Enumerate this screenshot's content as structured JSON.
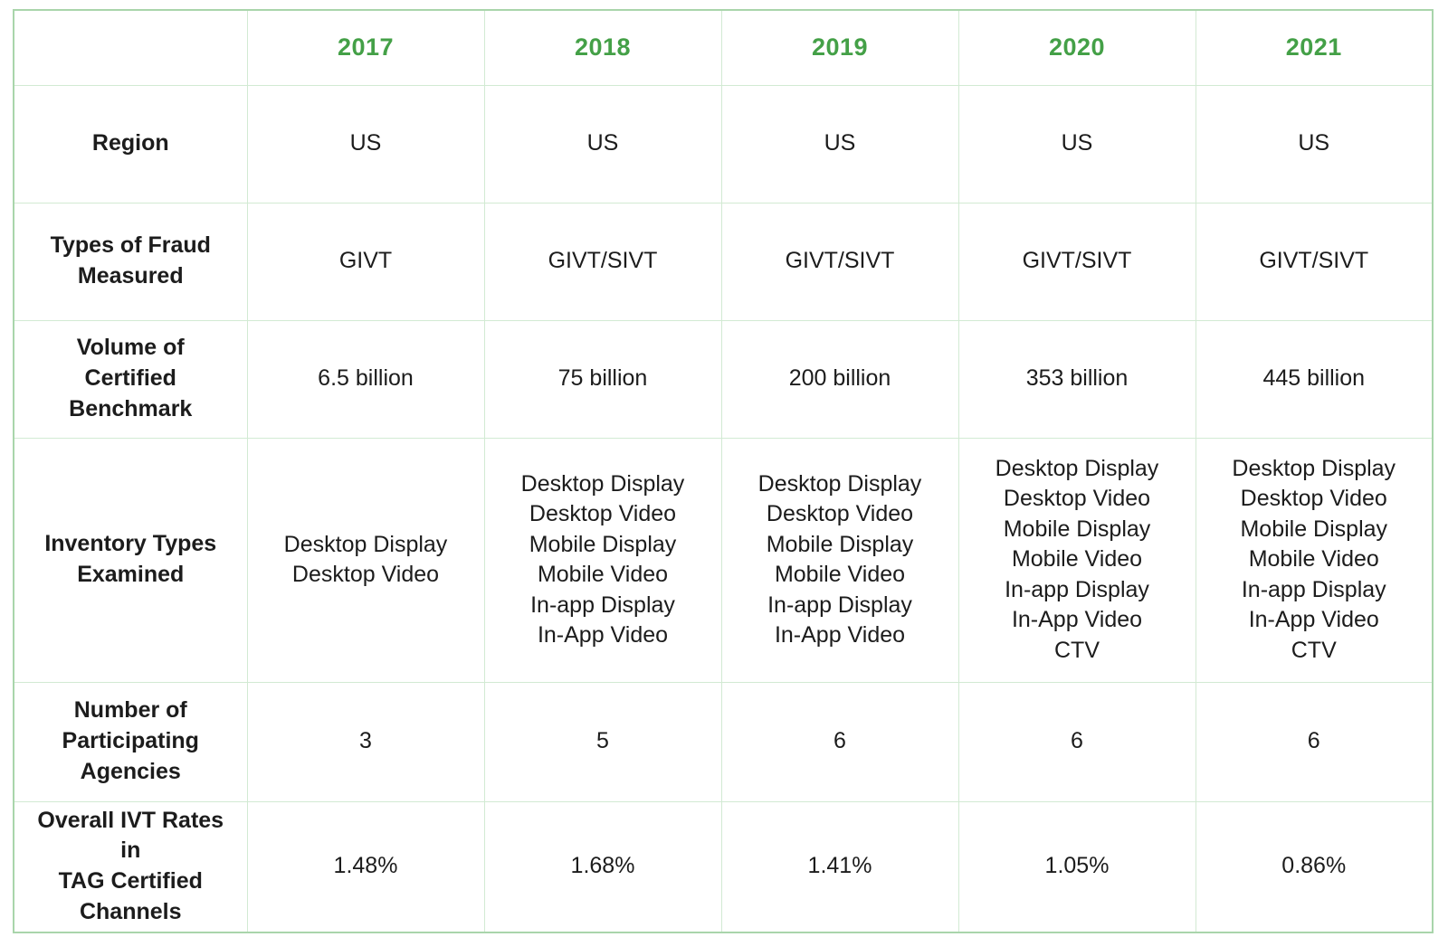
{
  "colors": {
    "accent_green": "#44a047",
    "grid_line": "#d2ead3",
    "outer_border": "#a9d5ab",
    "text": "#1c1c1c",
    "background": "#ffffff"
  },
  "table": {
    "columns": [
      "2017",
      "2018",
      "2019",
      "2020",
      "2021"
    ],
    "rows": [
      {
        "label": "Region",
        "values": [
          "US",
          "US",
          "US",
          "US",
          "US"
        ]
      },
      {
        "label": "Types of Fraud\nMeasured",
        "values": [
          "GIVT",
          "GIVT/SIVT",
          "GIVT/SIVT",
          "GIVT/SIVT",
          "GIVT/SIVT"
        ]
      },
      {
        "label": "Volume of Certified\nBenchmark",
        "values": [
          "6.5 billion",
          "75 billion",
          "200 billion",
          "353 billion",
          "445 billion"
        ]
      },
      {
        "label": "Inventory Types\nExamined",
        "values": [
          [
            "Desktop Display",
            "Desktop Video"
          ],
          [
            "Desktop Display",
            "Desktop Video",
            "Mobile Display",
            "Mobile Video",
            "In-app Display",
            "In-App Video"
          ],
          [
            "Desktop Display",
            "Desktop Video",
            "Mobile Display",
            "Mobile Video",
            "In-app Display",
            "In-App Video"
          ],
          [
            "Desktop Display",
            "Desktop Video",
            "Mobile Display",
            "Mobile Video",
            "In-app Display",
            "In-App Video",
            "CTV"
          ],
          [
            "Desktop Display",
            "Desktop Video",
            "Mobile Display",
            "Mobile Video",
            "In-app Display",
            "In-App Video",
            "CTV"
          ]
        ]
      },
      {
        "label": "Number of\nParticipating\nAgencies",
        "values": [
          "3",
          "5",
          "6",
          "6",
          "6"
        ]
      },
      {
        "label": "Overall IVT Rates in\nTAG Certified\nChannels",
        "values": [
          "1.48%",
          "1.68%",
          "1.41%",
          "1.05%",
          "0.86%"
        ]
      }
    ]
  },
  "chart_data": {
    "type": "table",
    "column_headers": [
      "2017",
      "2018",
      "2019",
      "2020",
      "2021"
    ],
    "row_headers": [
      "Region",
      "Types of Fraud Measured",
      "Volume of Certified Benchmark",
      "Inventory Types Examined",
      "Number of Participating Agencies",
      "Overall IVT Rates in TAG Certified Channels"
    ],
    "cells": [
      [
        "US",
        "US",
        "US",
        "US",
        "US"
      ],
      [
        "GIVT",
        "GIVT/SIVT",
        "GIVT/SIVT",
        "GIVT/SIVT",
        "GIVT/SIVT"
      ],
      [
        "6.5 billion",
        "75 billion",
        "200 billion",
        "353 billion",
        "445 billion"
      ],
      [
        "Desktop Display, Desktop Video",
        "Desktop Display, Desktop Video, Mobile Display, Mobile Video, In-app Display, In-App Video",
        "Desktop Display, Desktop Video, Mobile Display, Mobile Video, In-app Display, In-App Video",
        "Desktop Display, Desktop Video, Mobile Display, Mobile Video, In-app Display, In-App Video, CTV",
        "Desktop Display, Desktop Video, Mobile Display, Mobile Video, In-app Display, In-App Video, CTV"
      ],
      [
        "3",
        "5",
        "6",
        "6",
        "6"
      ],
      [
        "1.48%",
        "1.68%",
        "1.41%",
        "1.05%",
        "0.86%"
      ]
    ],
    "overall_ivt_rates_numeric": [
      1.48,
      1.68,
      1.41,
      1.05,
      0.86
    ],
    "agencies_numeric": [
      3,
      5,
      6,
      6,
      6
    ]
  }
}
